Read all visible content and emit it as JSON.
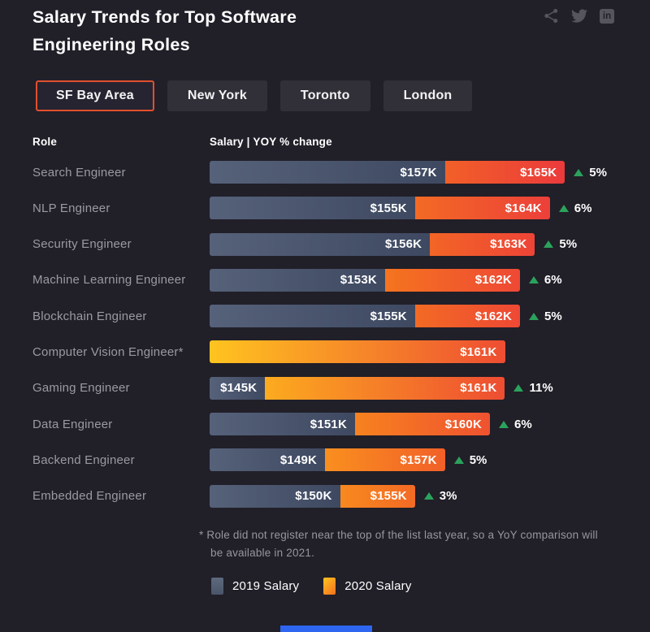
{
  "title": "Salary Trends for Top Software Engineering Roles",
  "header_icons": [
    {
      "name": "share",
      "label": "Share"
    },
    {
      "name": "twitter",
      "label": "Twitter"
    },
    {
      "name": "linkedin",
      "label": "LinkedIn"
    }
  ],
  "tabs": [
    "SF Bay Area",
    "New York",
    "Toronto",
    "London"
  ],
  "active_tab": "SF Bay Area",
  "column_headers": {
    "role": "Role",
    "salary": "Salary | YOY % change"
  },
  "chart_data": {
    "type": "bar",
    "orientation": "horizontal",
    "title": "Salary Trends for Top Software Engineering Roles",
    "location_tabs": [
      "SF Bay Area",
      "New York",
      "Toronto",
      "London"
    ],
    "active_location": "SF Bay Area",
    "series": [
      "2019 Salary",
      "2020 Salary"
    ],
    "unit": "USD thousands per year",
    "rows": [
      {
        "role": "Search Engineer",
        "salary_2019_k": 157,
        "salary_2020_k": 165,
        "label_2019": "$157K",
        "label_2020": "$165K",
        "yoy_change": "5%"
      },
      {
        "role": "NLP Engineer",
        "salary_2019_k": 155,
        "salary_2020_k": 164,
        "label_2019": "$155K",
        "label_2020": "$164K",
        "yoy_change": "6%"
      },
      {
        "role": "Security Engineer",
        "salary_2019_k": 156,
        "salary_2020_k": 163,
        "label_2019": "$156K",
        "label_2020": "$163K",
        "yoy_change": "5%"
      },
      {
        "role": "Machine Learning Engineer",
        "salary_2019_k": 153,
        "salary_2020_k": 162,
        "label_2019": "$153K",
        "label_2020": "$162K",
        "yoy_change": "6%"
      },
      {
        "role": "Blockchain Engineer",
        "salary_2019_k": 155,
        "salary_2020_k": 162,
        "label_2019": "$155K",
        "label_2020": "$162K",
        "yoy_change": "5%"
      },
      {
        "role": "Computer Vision Engineer*",
        "salary_2019_k": null,
        "salary_2020_k": 161,
        "label_2019": null,
        "label_2020": "$161K",
        "yoy_change": null
      },
      {
        "role": "Gaming Engineer",
        "salary_2019_k": 145,
        "salary_2020_k": 161,
        "label_2019": "$145K",
        "label_2020": "$161K",
        "yoy_change": "11%"
      },
      {
        "role": "Data Engineer",
        "salary_2019_k": 151,
        "salary_2020_k": 160,
        "label_2019": "$151K",
        "label_2020": "$160K",
        "yoy_change": "6%"
      },
      {
        "role": "Backend Engineer",
        "salary_2019_k": 149,
        "salary_2020_k": 157,
        "label_2019": "$149K",
        "label_2020": "$157K",
        "yoy_change": "5%"
      },
      {
        "role": "Embedded Engineer",
        "salary_2019_k": 150,
        "salary_2020_k": 155,
        "label_2019": "$150K",
        "label_2020": "$155K",
        "yoy_change": "3%"
      }
    ],
    "axis": {
      "baseline_k": 141.3,
      "max_2020_k": 165,
      "gridlines": false
    },
    "colors": {
      "background": "#211F28",
      "bar_2019_start": "#56617A",
      "bar_2019_end": "#3E4961",
      "bar_2020_yellow": "#FFC41F",
      "bar_2020_orange": "#F5731F",
      "bar_2020_red": "#EB3A3C",
      "yoy_green": "#2BA25C",
      "active_tab_border": "#E0502E"
    }
  },
  "footnote": "* Role did not register near the top of the list last year, so a YoY comparison will be available in 2021.",
  "legend": [
    {
      "label": "2019 Salary"
    },
    {
      "label": "2020 Salary"
    }
  ]
}
